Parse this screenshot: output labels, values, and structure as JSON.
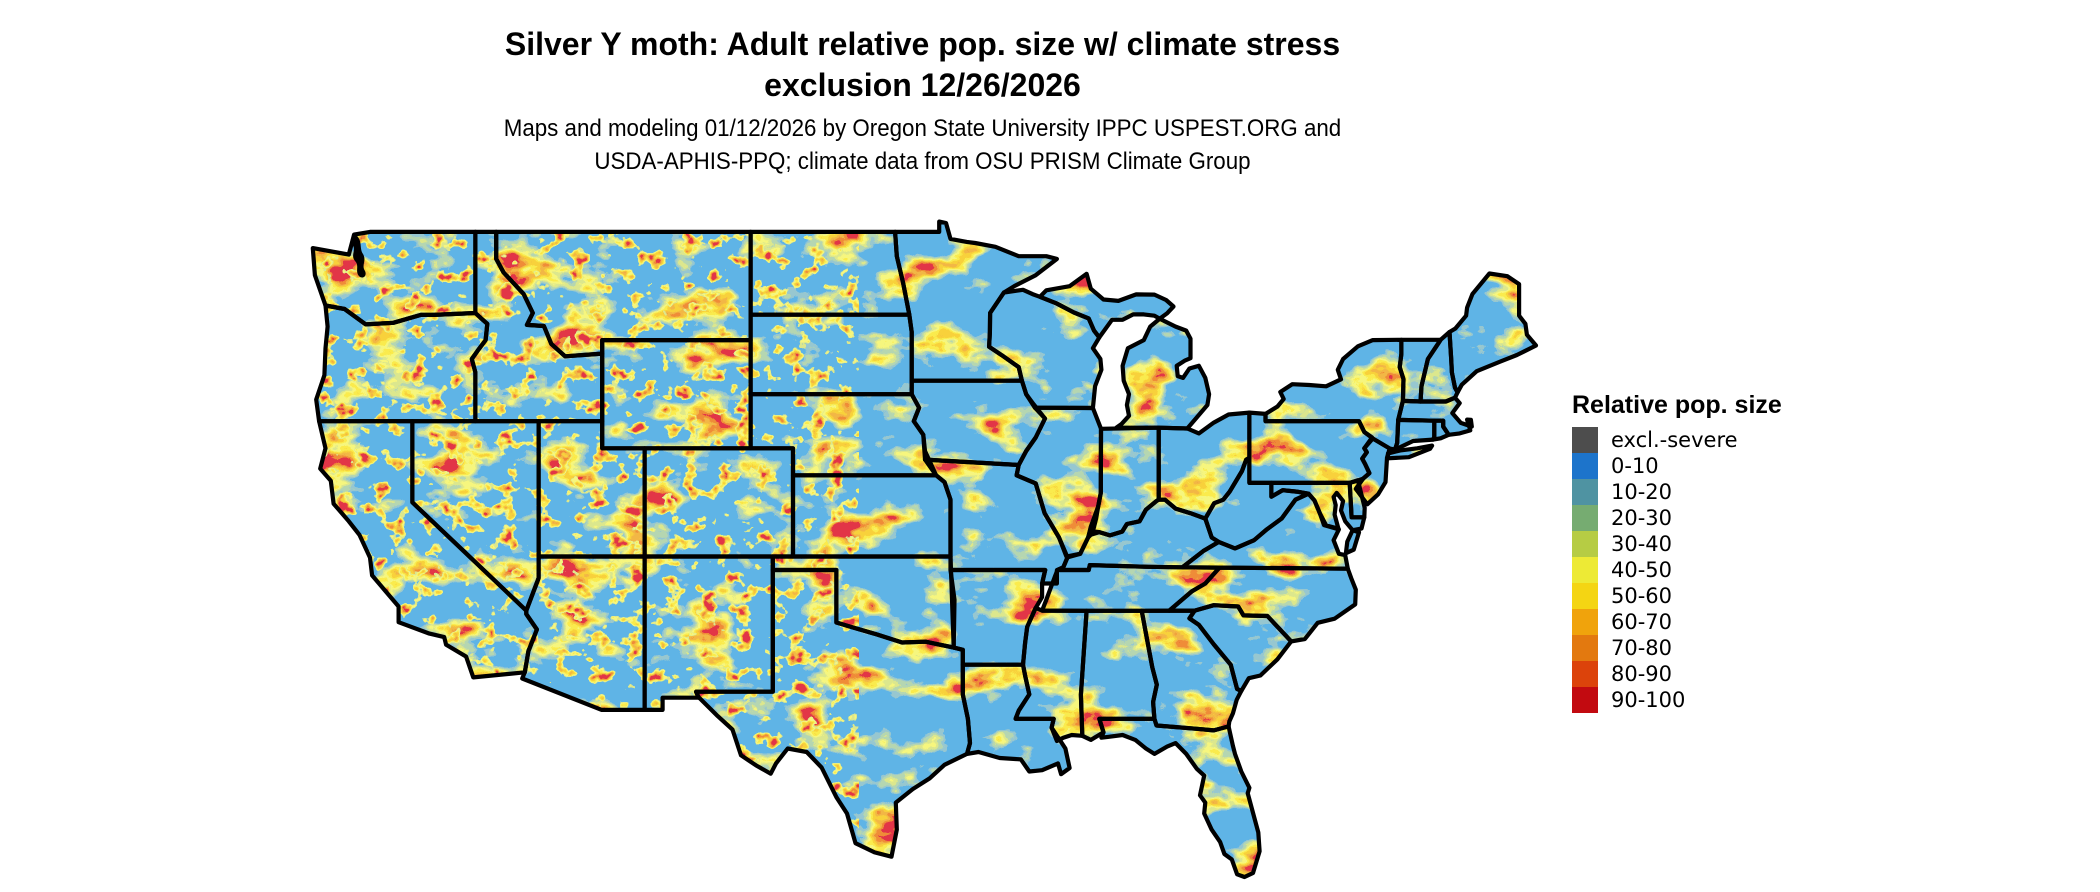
{
  "figure": {
    "title_line1": "Silver Y moth: Adult relative pop. size w/ climate stress",
    "title_line2": "exclusion 12/26/2026",
    "subtitle_line1": "Maps and modeling 01/12/2026 by Oregon State University IPPC USPEST.ORG and",
    "subtitle_line2": "USDA-APHIS-PPQ; climate data from OSU PRISM Climate Group"
  },
  "legend": {
    "title": "Relative pop. size",
    "items": [
      {
        "label": "excl.-severe",
        "color": "#4d4d4d"
      },
      {
        "label": "0-10",
        "color": "#1d74cb"
      },
      {
        "label": "10-20",
        "color": "#4f93a2"
      },
      {
        "label": "20-30",
        "color": "#76ac71"
      },
      {
        "label": "30-40",
        "color": "#b6cc44"
      },
      {
        "label": "40-50",
        "color": "#edea35"
      },
      {
        "label": "50-60",
        "color": "#f4d513"
      },
      {
        "label": "60-70",
        "color": "#f0a30c"
      },
      {
        "label": "70-80",
        "color": "#e3790f"
      },
      {
        "label": "80-90",
        "color": "#dc430b"
      },
      {
        "label": "90-100",
        "color": "#c20a10"
      }
    ]
  },
  "map": {
    "region": "Continental United States",
    "base_fill_color": "#1d74cb",
    "state_border_color": "#000000",
    "water_inlet_color": "#000000",
    "background_color": "#ffffff"
  }
}
